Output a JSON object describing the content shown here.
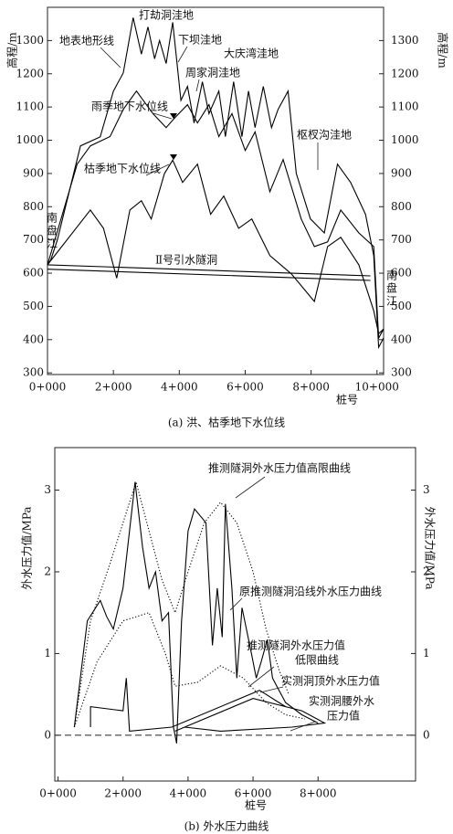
{
  "chart_data": [
    {
      "type": "line",
      "caption": "(a) 洪、枯季地下水位线",
      "xlabel": "桩号",
      "ylabel": "高程/m",
      "xlim": [
        0,
        10.2
      ],
      "ylim": [
        295,
        1400
      ],
      "xticks": [
        {
          "value": 0,
          "label": "0+000"
        },
        {
          "value": 2,
          "label": "2+000"
        },
        {
          "value": 4,
          "label": "4+000"
        },
        {
          "value": 6,
          "label": "6+000"
        },
        {
          "value": 8,
          "label": "8+000"
        },
        {
          "value": 10,
          "label": "10+000"
        }
      ],
      "yticks": [
        300,
        400,
        500,
        600,
        700,
        800,
        900,
        1000,
        1100,
        1200,
        1300
      ],
      "annotations": [
        "打劫洞洼地",
        "下坝洼地",
        "大庆湾洼地",
        "周家洞洼地",
        "枢杈沟洼地",
        "南盘江",
        "南盘江"
      ],
      "series": [
        {
          "label_lines": [
            "地表地形线"
          ],
          "color": "#000",
          "dash": "solid",
          "x": [
            0,
            0.1,
            0.3,
            1.0,
            1.6,
            2.0,
            2.3,
            2.6,
            2.85,
            3.05,
            3.25,
            3.4,
            3.6,
            3.8,
            4.05,
            4.25,
            4.45,
            4.7,
            4.9,
            5.2,
            5.4,
            5.65,
            5.9,
            6.1,
            6.3,
            6.55,
            6.8,
            7.0,
            7.3,
            7.55,
            7.98,
            8.4,
            8.8,
            9.2,
            9.65,
            9.9,
            10.05,
            10.2
          ],
          "values": [
            625,
            640,
            700,
            983,
            1010,
            1148,
            1203,
            1369,
            1259,
            1341,
            1245,
            1300,
            1231,
            1355,
            1120,
            1162,
            1052,
            1176,
            1080,
            1148,
            1011,
            1176,
            1011,
            1148,
            1038,
            1162,
            1038,
            1093,
            1148,
            900,
            763,
            721,
            928,
            873,
            777,
            653,
            377,
            405
          ]
        },
        {
          "label_lines": [
            "雨季地下水位线"
          ],
          "color": "#000",
          "dash": "solid",
          "x": [
            0,
            0.9,
            1.3,
            1.9,
            2.3,
            2.7,
            3.2,
            3.6,
            3.85,
            4.25,
            4.55,
            4.9,
            5.2,
            5.6,
            6.0,
            6.3,
            6.75,
            7.15,
            7.7,
            8.1,
            8.5,
            8.9,
            9.45,
            9.9,
            10.05,
            10.2
          ],
          "values": [
            625,
            928,
            983,
            1011,
            1093,
            1148,
            1080,
            1038,
            1066,
            1107,
            1052,
            1107,
            1011,
            1080,
            969,
            1025,
            845,
            942,
            763,
            680,
            694,
            790,
            721,
            680,
            405,
            432
          ]
        },
        {
          "label_lines": [
            "枯季地下水位线"
          ],
          "color": "#000",
          "dash": "solid",
          "x": [
            0,
            1.3,
            1.7,
            2.1,
            2.5,
            2.85,
            3.15,
            3.55,
            3.8,
            4.1,
            4.55,
            4.95,
            5.35,
            5.8,
            6.2,
            6.75,
            7.4,
            8.1,
            8.5,
            8.9,
            9.45,
            9.9,
            10.05,
            10.2
          ],
          "values": [
            625,
            790,
            735,
            585,
            790,
            818,
            763,
            900,
            940,
            873,
            928,
            777,
            832,
            735,
            763,
            653,
            598,
            515,
            680,
            708,
            625,
            487,
            418,
            432
          ]
        },
        {
          "label_lines": [
            "Ⅱ号引水隧洞"
          ],
          "color": "#000",
          "dash": "solid",
          "x": [
            0,
            9.8
          ],
          "values": [
            625,
            592
          ]
        },
        {
          "color": "#000",
          "dash": "solid",
          "x": [
            0,
            9.8
          ],
          "values": [
            612,
            578
          ]
        }
      ]
    },
    {
      "type": "line",
      "caption": "(b) 外水压力曲线",
      "xlabel": "桩号",
      "ylabel": "外水压力值/MPa",
      "xlim": [
        -0.1,
        11
      ],
      "ylim": [
        -0.56,
        3.52
      ],
      "reference_line": 0,
      "reference_style": "dashed",
      "xticks": [
        {
          "value": 0,
          "label": "0+000"
        },
        {
          "value": 2,
          "label": "2+000"
        },
        {
          "value": 4,
          "label": "4+000"
        },
        {
          "value": 6,
          "label": "6+000"
        },
        {
          "value": 8,
          "label": "8+000"
        }
      ],
      "yticks": [
        0,
        1,
        2,
        3
      ],
      "series": [
        {
          "label_lines": [
            "推测隧洞外水压力值高限曲线"
          ],
          "color": "#000",
          "dash": "dotted",
          "x": [
            0.5,
            1.0,
            1.6,
            2.0,
            2.4,
            2.8,
            3.2,
            3.6,
            4.0,
            4.5,
            5.0,
            5.5,
            6.0,
            6.4,
            6.8,
            7.1
          ],
          "values": [
            0.1,
            1.4,
            2.1,
            2.6,
            3.1,
            2.5,
            1.9,
            1.5,
            2.0,
            2.6,
            2.85,
            2.6,
            2.0,
            1.3,
            0.8,
            0.5
          ]
        },
        {
          "label_lines": [
            "原推测隧洞沿线外水压力曲线"
          ],
          "color": "#000",
          "dash": "solid",
          "x": [
            0.5,
            0.9,
            1.3,
            1.5,
            1.7,
            2.0,
            2.37,
            2.6,
            2.8,
            3.0,
            3.2,
            3.4,
            3.55,
            3.65,
            3.8,
            4.0,
            4.2,
            4.55,
            4.75,
            4.9,
            5.05,
            5.15,
            5.35,
            5.5,
            5.66,
            5.95,
            6.1,
            6.25,
            6.44,
            6.6,
            6.8,
            7.0,
            7.5,
            8.0
          ],
          "values": [
            0.1,
            1.4,
            1.65,
            1.45,
            1.3,
            1.8,
            3.1,
            2.3,
            1.8,
            2.0,
            1.4,
            1.5,
            0.1,
            -0.1,
            1.4,
            2.5,
            2.77,
            2.6,
            1.1,
            1.8,
            1.2,
            2.83,
            1.8,
            0.7,
            1.56,
            1.0,
            0.7,
            0.9,
            1.17,
            0.7,
            0.55,
            0.4,
            0.25,
            0.15
          ]
        },
        {
          "label_lines": [
            "推测隧洞外水压力值",
            "低限曲线"
          ],
          "color": "#000",
          "dash": "dotted",
          "x": [
            0.5,
            1.2,
            2.0,
            2.8,
            3.3,
            3.6,
            4.3,
            5.0,
            5.7,
            6.4,
            7.0,
            7.6
          ],
          "values": [
            0.1,
            0.9,
            1.4,
            1.5,
            1.0,
            0.6,
            0.65,
            0.85,
            0.7,
            0.4,
            0.25,
            0.2
          ]
        },
        {
          "label_lines": [
            "实测洞顶外水压力值"
          ],
          "color": "#000",
          "dash": "solid",
          "x": [
            1.0,
            1.0,
            2.0,
            2.1,
            2.2,
            3.5,
            6.2,
            6.8,
            7.0
          ],
          "values": [
            0.1,
            0.35,
            0.3,
            0.7,
            0.05,
            0.1,
            0.55,
            0.4,
            0.35
          ]
        },
        {
          "label_lines": [
            "实测洞腰外水",
            "压力值"
          ],
          "color": "#000",
          "dash": "solid",
          "x": [
            3.6,
            6.0,
            7.5,
            8.2,
            7.2,
            5.0,
            3.9
          ],
          "values": [
            0.05,
            0.45,
            0.3,
            0.15,
            0.1,
            0.05,
            0.1
          ]
        }
      ]
    }
  ]
}
